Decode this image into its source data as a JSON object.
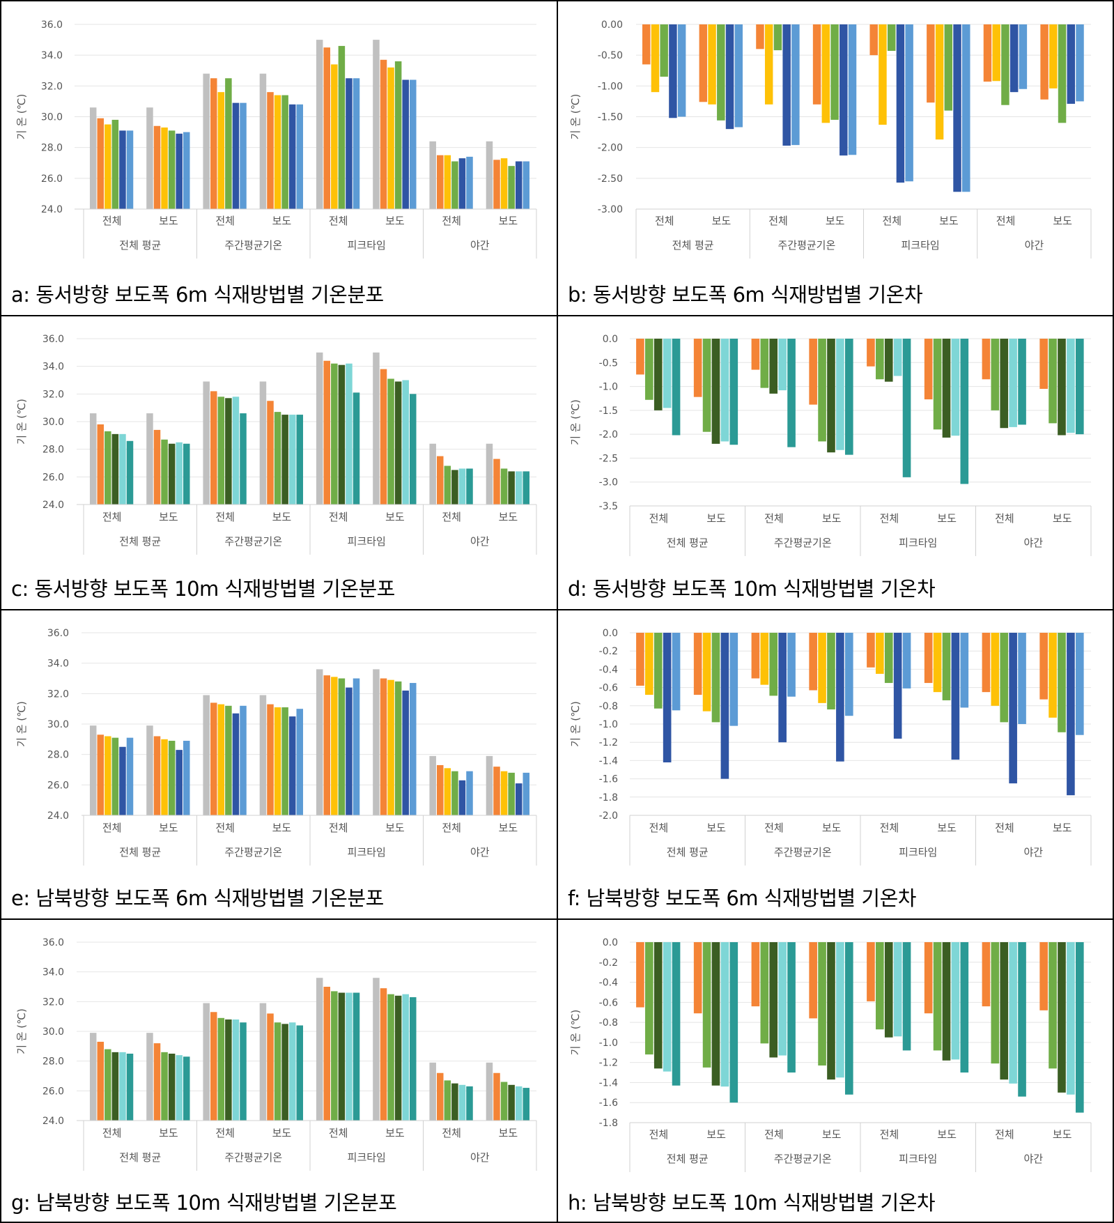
{
  "common": {
    "group_labels": [
      "전체 평균",
      "주간평균기온",
      "피크타임",
      "야간"
    ],
    "sub_labels": [
      "전체",
      "보도"
    ],
    "ylabel": "기 온 (℃)"
  },
  "colors": {
    "gray": "#c0c0c0",
    "orange": "#f48436",
    "yellow": "#fec107",
    "green": "#70ad47",
    "navy": "#2f55a4",
    "blue": "#5c9bd5",
    "dkgreen": "#3b5e23",
    "cyan": "#7ed6d6",
    "teal": "#2b9a95",
    "grid": "#e4e4e4",
    "axis": "#d0d0d0",
    "tick": "#555555"
  },
  "chart_data": [
    {
      "id": "a",
      "type": "bar",
      "caption": "a: 동서방향 보도폭 6m 식재방법별 기온분포",
      "ylabel": "기 온 (℃)",
      "ylim": [
        24,
        36
      ],
      "yticks": [
        "36.0",
        "34.0",
        "32.0",
        "30.0",
        "28.0",
        "26.0",
        "24.0"
      ],
      "palette": [
        "gray",
        "orange",
        "yellow",
        "green",
        "navy",
        "blue"
      ],
      "values": [
        [
          30.6,
          29.9,
          29.5,
          29.8,
          29.1,
          29.1
        ],
        [
          30.6,
          29.4,
          29.3,
          29.1,
          28.9,
          29.0
        ],
        [
          32.8,
          32.5,
          31.6,
          32.5,
          30.9,
          30.9
        ],
        [
          32.8,
          31.6,
          31.4,
          31.4,
          30.8,
          30.8
        ],
        [
          35.0,
          34.5,
          33.4,
          34.6,
          32.5,
          32.5
        ],
        [
          35.0,
          33.7,
          33.2,
          33.6,
          32.4,
          32.4
        ],
        [
          28.4,
          27.5,
          27.5,
          27.1,
          27.3,
          27.4
        ],
        [
          28.4,
          27.2,
          27.3,
          26.8,
          27.1,
          27.1
        ]
      ]
    },
    {
      "id": "b",
      "type": "bar",
      "caption": "b: 동서방향 보도폭 6m 식재방법별 기온차",
      "ylabel": "기 온 (℃)",
      "ylim": [
        -3,
        0
      ],
      "yticks": [
        "0.00",
        "-0.50",
        "-1.00",
        "-1.50",
        "-2.00",
        "-2.50",
        "-3.00"
      ],
      "palette": [
        "orange",
        "yellow",
        "green",
        "navy",
        "blue"
      ],
      "values": [
        [
          -0.65,
          -1.1,
          -0.85,
          -1.52,
          -1.5
        ],
        [
          -1.26,
          -1.3,
          -1.56,
          -1.7,
          -1.67
        ],
        [
          -0.4,
          -1.3,
          -0.42,
          -1.97,
          -1.96
        ],
        [
          -1.3,
          -1.6,
          -1.55,
          -2.13,
          -2.12
        ],
        [
          -0.5,
          -1.63,
          -0.43,
          -2.57,
          -2.55
        ],
        [
          -1.27,
          -1.87,
          -1.4,
          -2.72,
          -2.72
        ],
        [
          -0.93,
          -0.92,
          -1.31,
          -1.1,
          -1.05
        ],
        [
          -1.22,
          -1.04,
          -1.6,
          -1.29,
          -1.25
        ]
      ]
    },
    {
      "id": "c",
      "type": "bar",
      "caption": "c: 동서방향 보도폭 10m 식재방법별 기온분포",
      "ylabel": "기 온 (℃)",
      "ylim": [
        24,
        36
      ],
      "yticks": [
        "36.0",
        "34.0",
        "32.0",
        "30.0",
        "28.0",
        "26.0",
        "24.0"
      ],
      "palette": [
        "gray",
        "orange",
        "green",
        "dkgreen",
        "cyan",
        "teal"
      ],
      "values": [
        [
          30.6,
          29.8,
          29.3,
          29.1,
          29.1,
          28.6
        ],
        [
          30.6,
          29.4,
          28.7,
          28.4,
          28.5,
          28.4
        ],
        [
          32.9,
          32.2,
          31.8,
          31.7,
          31.8,
          30.6
        ],
        [
          32.9,
          31.5,
          30.7,
          30.5,
          30.5,
          30.5
        ],
        [
          35.0,
          34.4,
          34.2,
          34.1,
          34.2,
          32.1
        ],
        [
          35.0,
          33.8,
          33.1,
          32.9,
          33.0,
          32.0
        ],
        [
          28.4,
          27.5,
          26.8,
          26.5,
          26.6,
          26.6
        ],
        [
          28.4,
          27.3,
          26.6,
          26.4,
          26.4,
          26.4
        ]
      ]
    },
    {
      "id": "d",
      "type": "bar",
      "caption": "d: 동서방향 보도폭 10m 식재방법별 기온차",
      "ylabel": "기 온 (℃)",
      "ylim": [
        -3.5,
        0
      ],
      "yticks": [
        "0.0",
        "-0.5",
        "-1.0",
        "-1.5",
        "-2.0",
        "-2.5",
        "-3.0",
        "-3.5"
      ],
      "palette": [
        "orange",
        "green",
        "dkgreen",
        "cyan",
        "teal"
      ],
      "values": [
        [
          -0.75,
          -1.28,
          -1.5,
          -1.45,
          -2.02
        ],
        [
          -1.22,
          -1.95,
          -2.2,
          -2.15,
          -2.22
        ],
        [
          -0.65,
          -1.03,
          -1.15,
          -1.08,
          -2.27
        ],
        [
          -1.38,
          -2.15,
          -2.38,
          -2.33,
          -2.43
        ],
        [
          -0.58,
          -0.85,
          -0.9,
          -0.78,
          -2.9
        ],
        [
          -1.27,
          -1.9,
          -2.07,
          -2.03,
          -3.04
        ],
        [
          -0.85,
          -1.5,
          -1.87,
          -1.85,
          -1.8
        ],
        [
          -1.05,
          -1.77,
          -2.02,
          -1.97,
          -2.0
        ]
      ]
    },
    {
      "id": "e",
      "type": "bar",
      "caption": "e: 남북방향 보도폭 6m 식재방법별 기온분포",
      "ylabel": "기 온 (℃)",
      "ylim": [
        24,
        36
      ],
      "yticks": [
        "36.0",
        "34.0",
        "32.0",
        "30.0",
        "28.0",
        "26.0",
        "24.0"
      ],
      "palette": [
        "gray",
        "orange",
        "yellow",
        "green",
        "navy",
        "blue"
      ],
      "values": [
        [
          29.9,
          29.3,
          29.2,
          29.1,
          28.5,
          29.1
        ],
        [
          29.9,
          29.2,
          29.0,
          28.9,
          28.3,
          28.9
        ],
        [
          31.9,
          31.4,
          31.3,
          31.2,
          30.7,
          31.2
        ],
        [
          31.9,
          31.3,
          31.1,
          31.1,
          30.5,
          31.0
        ],
        [
          33.6,
          33.2,
          33.1,
          33.0,
          32.4,
          33.0
        ],
        [
          33.6,
          33.0,
          32.9,
          32.8,
          32.2,
          32.7
        ],
        [
          27.9,
          27.3,
          27.1,
          26.9,
          26.3,
          26.9
        ],
        [
          27.9,
          27.2,
          26.9,
          26.8,
          26.1,
          26.8
        ]
      ]
    },
    {
      "id": "f",
      "type": "bar",
      "caption": "f: 남북방향 보도폭 6m 식재방법별 기온차",
      "ylabel": "기 온 (℃)",
      "ylim": [
        -2,
        0
      ],
      "yticks": [
        "0.0",
        "-0.2",
        "-0.4",
        "-0.6",
        "-0.8",
        "-1.0",
        "-1.2",
        "-1.4",
        "-1.6",
        "-1.8",
        "-2.0"
      ],
      "palette": [
        "orange",
        "yellow",
        "green",
        "navy",
        "blue"
      ],
      "values": [
        [
          -0.58,
          -0.68,
          -0.83,
          -1.42,
          -0.85
        ],
        [
          -0.68,
          -0.86,
          -0.98,
          -1.6,
          -1.02
        ],
        [
          -0.5,
          -0.57,
          -0.69,
          -1.2,
          -0.7
        ],
        [
          -0.63,
          -0.77,
          -0.84,
          -1.41,
          -0.91
        ],
        [
          -0.38,
          -0.45,
          -0.55,
          -1.16,
          -0.61
        ],
        [
          -0.55,
          -0.65,
          -0.74,
          -1.39,
          -0.82
        ],
        [
          -0.65,
          -0.8,
          -0.98,
          -1.65,
          -1.0
        ],
        [
          -0.73,
          -0.93,
          -1.09,
          -1.78,
          -1.12
        ]
      ]
    },
    {
      "id": "g",
      "type": "bar",
      "caption": "g: 남북방향 보도폭 10m 식재방법별 기온분포",
      "ylabel": "기 온 (℃)",
      "ylim": [
        24,
        36
      ],
      "yticks": [
        "36.0",
        "34.0",
        "32.0",
        "30.0",
        "28.0",
        "26.0",
        "24.0"
      ],
      "palette": [
        "gray",
        "orange",
        "green",
        "dkgreen",
        "cyan",
        "teal"
      ],
      "values": [
        [
          29.9,
          29.3,
          28.8,
          28.6,
          28.6,
          28.5
        ],
        [
          29.9,
          29.2,
          28.6,
          28.5,
          28.4,
          28.3
        ],
        [
          31.9,
          31.3,
          30.9,
          30.8,
          30.8,
          30.6
        ],
        [
          31.9,
          31.2,
          30.6,
          30.5,
          30.6,
          30.4
        ],
        [
          33.6,
          33.0,
          32.7,
          32.6,
          32.6,
          32.6
        ],
        [
          33.6,
          32.9,
          32.5,
          32.4,
          32.5,
          32.3
        ],
        [
          27.9,
          27.2,
          26.7,
          26.5,
          26.4,
          26.3
        ],
        [
          27.9,
          27.2,
          26.6,
          26.4,
          26.3,
          26.2
        ]
      ]
    },
    {
      "id": "h",
      "type": "bar",
      "caption": "h: 남북방향 보도폭 10m 식재방법별 기온차",
      "ylabel": "기 온 (℃)",
      "ylim": [
        -1.8,
        0
      ],
      "yticks": [
        "0.0",
        "-0.2",
        "-0.4",
        "-0.6",
        "-0.8",
        "-1.0",
        "-1.2",
        "-1.4",
        "-1.6",
        "-1.8"
      ],
      "palette": [
        "orange",
        "green",
        "dkgreen",
        "cyan",
        "teal"
      ],
      "values": [
        [
          -0.65,
          -1.12,
          -1.26,
          -1.29,
          -1.43
        ],
        [
          -0.71,
          -1.25,
          -1.43,
          -1.44,
          -1.6
        ],
        [
          -0.64,
          -1.01,
          -1.15,
          -1.13,
          -1.3
        ],
        [
          -0.76,
          -1.23,
          -1.37,
          -1.35,
          -1.52
        ],
        [
          -0.59,
          -0.87,
          -0.95,
          -0.94,
          -1.08
        ],
        [
          -0.71,
          -1.08,
          -1.18,
          -1.17,
          -1.3
        ],
        [
          -0.64,
          -1.21,
          -1.37,
          -1.41,
          -1.54
        ],
        [
          -0.68,
          -1.26,
          -1.5,
          -1.52,
          -1.7
        ]
      ]
    }
  ]
}
